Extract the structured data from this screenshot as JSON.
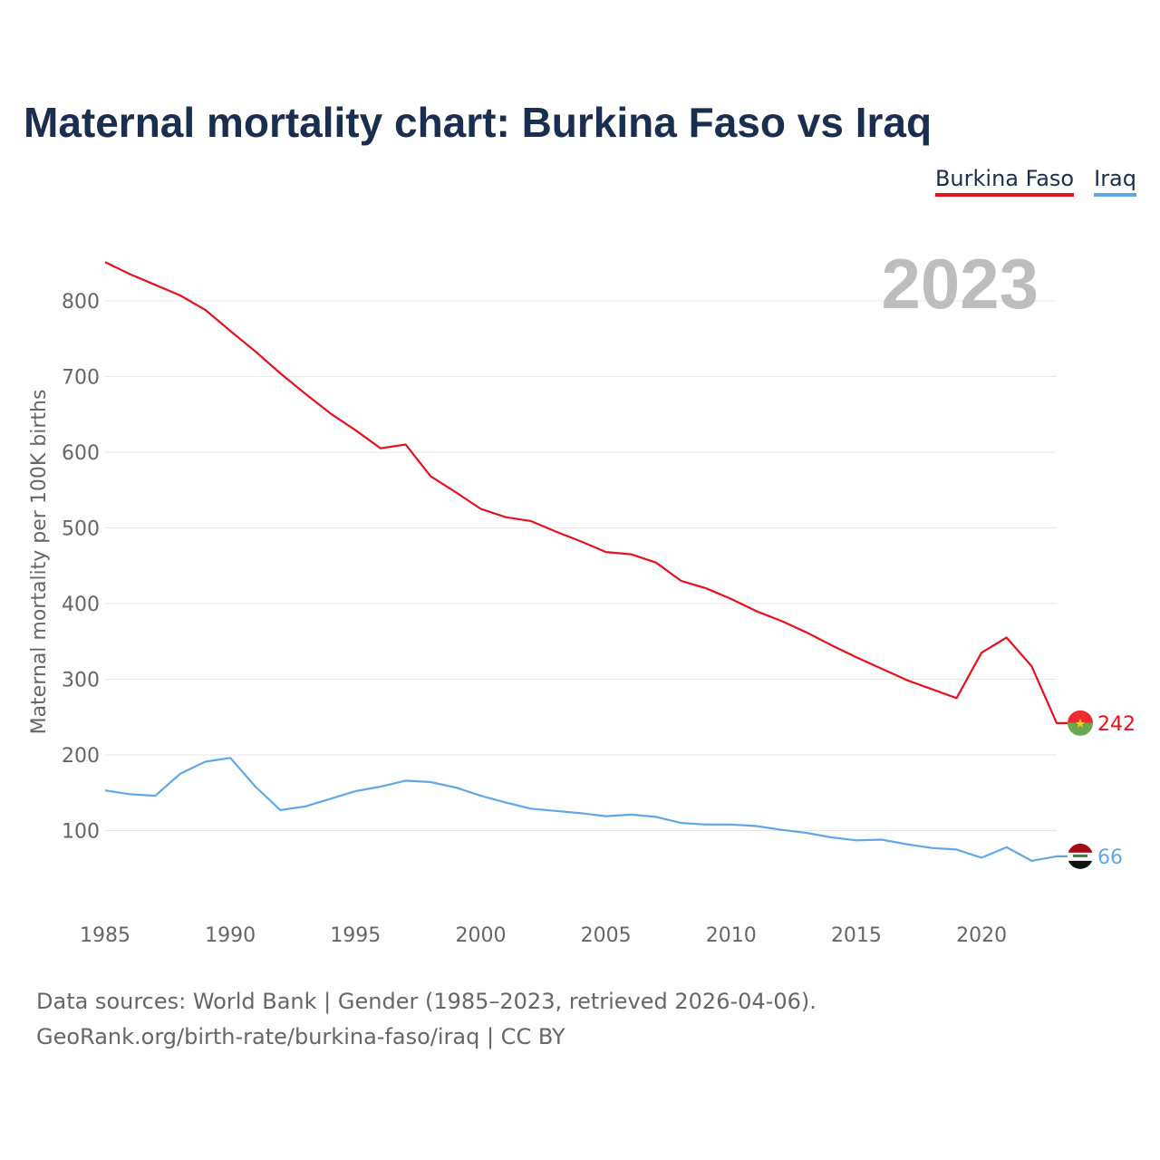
{
  "chart_data": {
    "type": "line",
    "title": "Maternal mortality chart: Burkina Faso vs Iraq",
    "ylabel": "Maternal mortality per 100K births",
    "xlabel": "",
    "year_label": "2023",
    "x": [
      1985,
      1986,
      1987,
      1988,
      1989,
      1990,
      1991,
      1992,
      1993,
      1994,
      1995,
      1996,
      1997,
      1998,
      1999,
      2000,
      2001,
      2002,
      2003,
      2004,
      2005,
      2006,
      2007,
      2008,
      2009,
      2010,
      2011,
      2012,
      2013,
      2014,
      2015,
      2016,
      2017,
      2018,
      2019,
      2020,
      2021,
      2022,
      2023
    ],
    "xlim": [
      1985,
      2023
    ],
    "ylim": [
      0,
      870
    ],
    "yticks": [
      100,
      200,
      300,
      400,
      500,
      600,
      700,
      800
    ],
    "xticks": [
      1985,
      1990,
      1995,
      2000,
      2005,
      2010,
      2015,
      2020
    ],
    "series": [
      {
        "name": "Burkina Faso",
        "color": "#e8101c",
        "end_label": "242",
        "values": [
          851,
          835,
          821,
          807,
          788,
          760,
          733,
          704,
          677,
          651,
          629,
          605,
          610,
          568,
          547,
          525,
          514,
          509,
          495,
          482,
          468,
          465,
          454,
          430,
          420,
          406,
          390,
          377,
          362,
          345,
          329,
          314,
          299,
          287,
          275,
          335,
          355,
          317,
          242
        ]
      },
      {
        "name": "Iraq",
        "color": "#5fa8e8",
        "end_label": "66",
        "values": [
          153,
          148,
          146,
          175,
          191,
          196,
          158,
          127,
          132,
          142,
          152,
          158,
          166,
          164,
          157,
          146,
          137,
          129,
          126,
          123,
          119,
          121,
          118,
          110,
          108,
          108,
          106,
          101,
          97,
          91,
          87,
          88,
          82,
          77,
          75,
          64,
          78,
          60,
          66
        ]
      }
    ],
    "footer_line1": "Data sources: World Bank | Gender (1985–2023, retrieved 2026-04-06).",
    "footer_line2": "GeoRank.org/birth-rate/burkina-faso/iraq | CC BY"
  }
}
